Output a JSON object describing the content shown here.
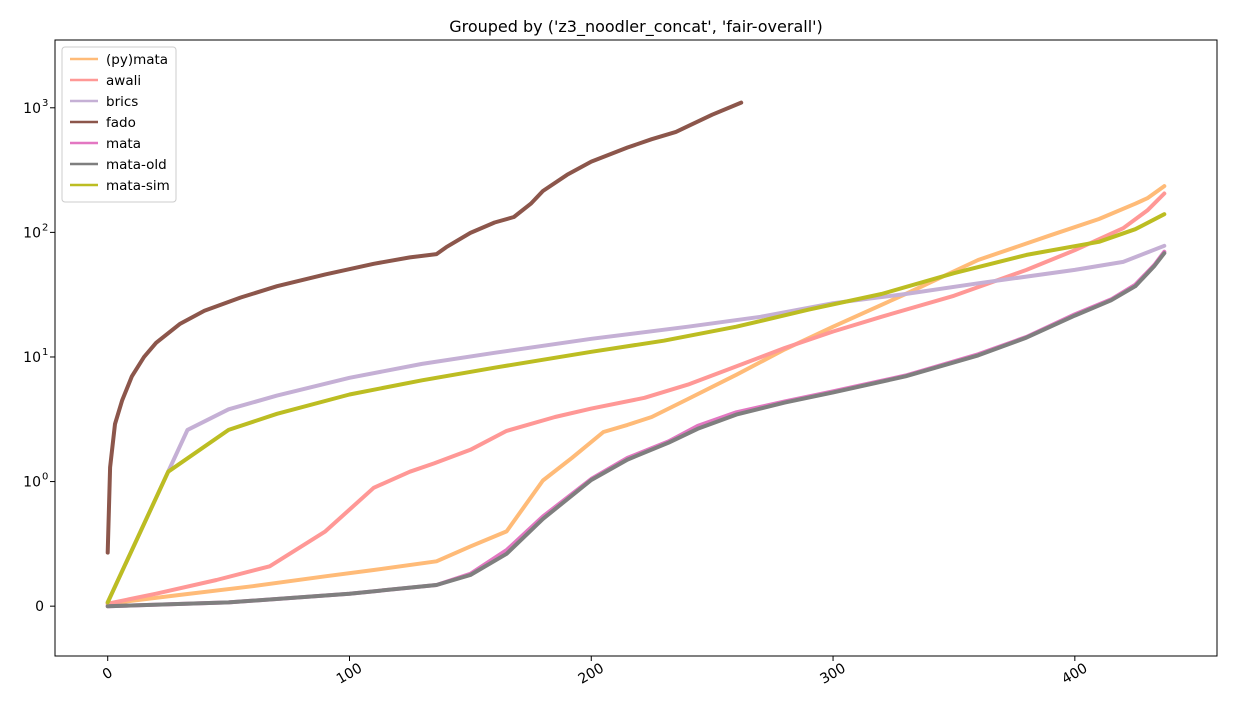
{
  "chart_data": {
    "type": "line",
    "title": "Grouped by ('z3_noodler_concat', 'fair-overall')",
    "xlabel": "",
    "ylabel": "",
    "xlim": [
      -21.8,
      458.8
    ],
    "y_scale": "symlog",
    "y_linthresh": 1,
    "ylim": [
      -0.4,
      3500
    ],
    "grid": false,
    "legend_position": "top-left",
    "x_ticks": [
      {
        "value": 0,
        "label": "0"
      },
      {
        "value": 100,
        "label": "100"
      },
      {
        "value": 200,
        "label": "200"
      },
      {
        "value": 300,
        "label": "300"
      },
      {
        "value": 400,
        "label": "400"
      }
    ],
    "y_ticks": [
      {
        "value": 0,
        "label": "0"
      },
      {
        "value": 1,
        "label": "10",
        "exp": "0"
      },
      {
        "value": 10,
        "label": "10",
        "exp": "1"
      },
      {
        "value": 100,
        "label": "10",
        "exp": "2"
      },
      {
        "value": 1000,
        "label": "10",
        "exp": "3"
      }
    ],
    "series": [
      {
        "name": "(py)mata",
        "color": "#ffbb78",
        "points": [
          [
            0,
            0.02
          ],
          [
            30,
            0.09
          ],
          [
            60,
            0.16
          ],
          [
            90,
            0.24
          ],
          [
            110,
            0.29
          ],
          [
            136,
            0.36
          ],
          [
            150,
            0.48
          ],
          [
            165,
            0.6
          ],
          [
            180,
            1.02
          ],
          [
            192,
            1.55
          ],
          [
            205,
            2.5
          ],
          [
            215,
            2.85
          ],
          [
            225,
            3.3
          ],
          [
            240,
            4.6
          ],
          [
            260,
            7.2
          ],
          [
            280,
            11.5
          ],
          [
            300,
            17.5
          ],
          [
            330,
            32
          ],
          [
            360,
            60
          ],
          [
            390,
            95
          ],
          [
            410,
            128
          ],
          [
            425,
            170
          ],
          [
            430,
            188
          ],
          [
            437,
            235
          ]
        ]
      },
      {
        "name": "awali",
        "color": "#ff9896",
        "points": [
          [
            0,
            0.02
          ],
          [
            20,
            0.1
          ],
          [
            45,
            0.21
          ],
          [
            67,
            0.32
          ],
          [
            90,
            0.6
          ],
          [
            110,
            0.95
          ],
          [
            125,
            1.2
          ],
          [
            135,
            1.4
          ],
          [
            150,
            1.8
          ],
          [
            165,
            2.55
          ],
          [
            185,
            3.3
          ],
          [
            200,
            3.85
          ],
          [
            222,
            4.7
          ],
          [
            240,
            6.0
          ],
          [
            260,
            8.4
          ],
          [
            280,
            11.8
          ],
          [
            300,
            16
          ],
          [
            320,
            21
          ],
          [
            350,
            31
          ],
          [
            380,
            50
          ],
          [
            400,
            72
          ],
          [
            420,
            108
          ],
          [
            430,
            150
          ],
          [
            437,
            205
          ]
        ]
      },
      {
        "name": "brics",
        "color": "#c5b0d5",
        "points": [
          [
            0,
            0.03
          ],
          [
            33,
            2.6
          ],
          [
            50,
            3.8
          ],
          [
            70,
            4.9
          ],
          [
            100,
            6.8
          ],
          [
            130,
            8.8
          ],
          [
            160,
            10.8
          ],
          [
            200,
            14
          ],
          [
            240,
            17.5
          ],
          [
            270,
            21
          ],
          [
            300,
            27
          ],
          [
            330,
            32
          ],
          [
            360,
            39
          ],
          [
            400,
            50
          ],
          [
            420,
            58
          ],
          [
            437,
            78
          ]
        ]
      },
      {
        "name": "fado",
        "color": "#8c564b",
        "points": [
          [
            0,
            0.43
          ],
          [
            1,
            1.3
          ],
          [
            3,
            2.9
          ],
          [
            6,
            4.5
          ],
          [
            10,
            7
          ],
          [
            15,
            10
          ],
          [
            20,
            13
          ],
          [
            30,
            18.5
          ],
          [
            40,
            23.5
          ],
          [
            55,
            30
          ],
          [
            70,
            37
          ],
          [
            90,
            46
          ],
          [
            110,
            56
          ],
          [
            125,
            63
          ],
          [
            136,
            67
          ],
          [
            140,
            76
          ],
          [
            150,
            99
          ],
          [
            160,
            120
          ],
          [
            168,
            133
          ],
          [
            175,
            170
          ],
          [
            180,
            215
          ],
          [
            190,
            290
          ],
          [
            200,
            370
          ],
          [
            215,
            480
          ],
          [
            225,
            560
          ],
          [
            235,
            640
          ],
          [
            250,
            880
          ],
          [
            262,
            1100
          ]
        ]
      },
      {
        "name": "mata",
        "color": "#e377c2",
        "points": [
          [
            0,
            0.0
          ],
          [
            50,
            0.03
          ],
          [
            100,
            0.1
          ],
          [
            136,
            0.17
          ],
          [
            150,
            0.26
          ],
          [
            165,
            0.45
          ],
          [
            180,
            0.72
          ],
          [
            200,
            1.05
          ],
          [
            215,
            1.55
          ],
          [
            232,
            2.1
          ],
          [
            244,
            2.8
          ],
          [
            260,
            3.6
          ],
          [
            280,
            4.4
          ],
          [
            300,
            5.3
          ],
          [
            330,
            7.1
          ],
          [
            360,
            10.5
          ],
          [
            380,
            14.5
          ],
          [
            400,
            22
          ],
          [
            415,
            29
          ],
          [
            425,
            38
          ],
          [
            433,
            55
          ],
          [
            437,
            70
          ]
        ]
      },
      {
        "name": "mata-old",
        "color": "#7f7f7f",
        "points": [
          [
            0,
            0.0
          ],
          [
            50,
            0.03
          ],
          [
            100,
            0.1
          ],
          [
            136,
            0.17
          ],
          [
            150,
            0.25
          ],
          [
            165,
            0.42
          ],
          [
            180,
            0.7
          ],
          [
            200,
            1.03
          ],
          [
            215,
            1.5
          ],
          [
            232,
            2.05
          ],
          [
            244,
            2.65
          ],
          [
            260,
            3.45
          ],
          [
            280,
            4.3
          ],
          [
            300,
            5.2
          ],
          [
            330,
            7
          ],
          [
            360,
            10.3
          ],
          [
            380,
            14.3
          ],
          [
            400,
            21.5
          ],
          [
            415,
            28.5
          ],
          [
            425,
            37
          ],
          [
            433,
            54
          ],
          [
            437,
            68
          ]
        ]
      },
      {
        "name": "mata-sim",
        "color": "#bcbd22",
        "points": [
          [
            0,
            0.03
          ],
          [
            25,
            1.2
          ],
          [
            50,
            2.6
          ],
          [
            70,
            3.5
          ],
          [
            100,
            5.0
          ],
          [
            130,
            6.5
          ],
          [
            160,
            8.2
          ],
          [
            200,
            11
          ],
          [
            230,
            13.5
          ],
          [
            260,
            17.5
          ],
          [
            290,
            24
          ],
          [
            320,
            32
          ],
          [
            350,
            47
          ],
          [
            380,
            66
          ],
          [
            410,
            84
          ],
          [
            425,
            106
          ],
          [
            437,
            140
          ]
        ]
      }
    ]
  }
}
